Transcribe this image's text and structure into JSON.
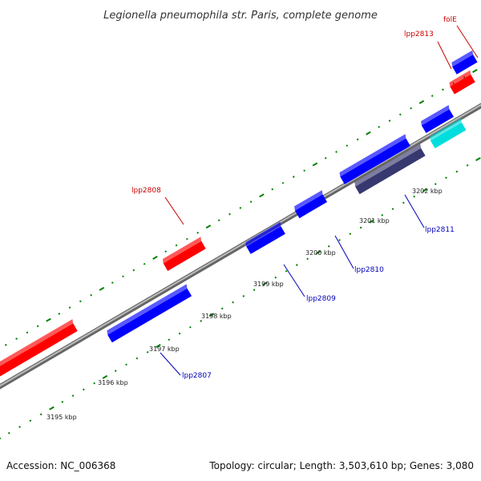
{
  "title": "Legionella pneumophila str. Paris, complete genome",
  "colors": {
    "forward": "#ff0000",
    "reverse": "#0000ff",
    "rna": "#00dddd",
    "other": "#383870",
    "backbone": "#888888",
    "tick": "#008000",
    "label_forward": "#cc0000",
    "label_reverse": "#0000bb"
  },
  "tick_labels": [
    "3195 kbp",
    "3196 kbp",
    "3197 kbp",
    "3198 kbp",
    "3199 kbp",
    "3200 kbp",
    "3201 kbp",
    "3202 kbp"
  ],
  "gene_labels": {
    "lpp2807": "lpp2807",
    "lpp2808": "lpp2808",
    "lpp2809": "lpp2809",
    "lpp2810": "lpp2810",
    "lpp2811": "lpp2811",
    "lpp2813": "lpp2813",
    "folE": "folE"
  },
  "footer": {
    "accession": "Accession: NC_006368",
    "summary": "Topology: circular; Length: 3,503,610 bp; Genes: 3,080"
  }
}
